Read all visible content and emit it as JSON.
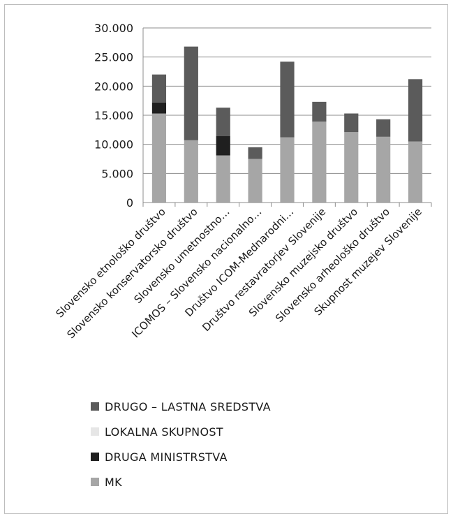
{
  "chart_data": {
    "type": "bar",
    "stacked": true,
    "yticks": [
      "0",
      "5.000",
      "10.000",
      "15.000",
      "20.000",
      "25.000",
      "30.000"
    ],
    "ylim": [
      0,
      30000
    ],
    "grid": true,
    "legend_position": "bottom",
    "categories": [
      "Slovensko etnološko društvo",
      "Slovensko konservatorsko društvo",
      "Slovensko umetnostno…",
      "ICOMOS – Slovensko nacionalno…",
      "Društvo ICOM-Mednarodni…",
      "Društvo restavratorjev Slovenije",
      "Slovensko muzejsko društvo",
      "Slovensko arheološko društvo",
      "Skupnost muzejev Slovenije"
    ],
    "series": [
      {
        "name": "MK",
        "color": "#a6a6a6",
        "values": [
          15300,
          10700,
          8100,
          7500,
          11200,
          13900,
          12100,
          11300,
          10500
        ]
      },
      {
        "name": "DRUGA MINISTRSTVA",
        "color": "#1f1f1f",
        "values": [
          1900,
          0,
          3300,
          0,
          0,
          0,
          0,
          0,
          0
        ]
      },
      {
        "name": "LOKALNA SKUPNOST",
        "color": "#e6e6e6",
        "values": [
          0,
          0,
          0,
          0,
          0,
          0,
          0,
          0,
          0
        ]
      },
      {
        "name": "DRUGO – LASTNA  SREDSTVA",
        "color": "#5b5b5b",
        "values": [
          4800,
          16100,
          4900,
          2000,
          13000,
          3400,
          3200,
          3000,
          10700
        ]
      }
    ]
  },
  "legend": [
    {
      "label": "DRUGO – LASTNA  SREDSTVA",
      "color": "#5b5b5b"
    },
    {
      "label": "LOKALNA SKUPNOST",
      "color": "#e6e6e6"
    },
    {
      "label": "DRUGA MINISTRSTVA",
      "color": "#1f1f1f"
    },
    {
      "label": "MK",
      "color": "#a6a6a6"
    }
  ]
}
